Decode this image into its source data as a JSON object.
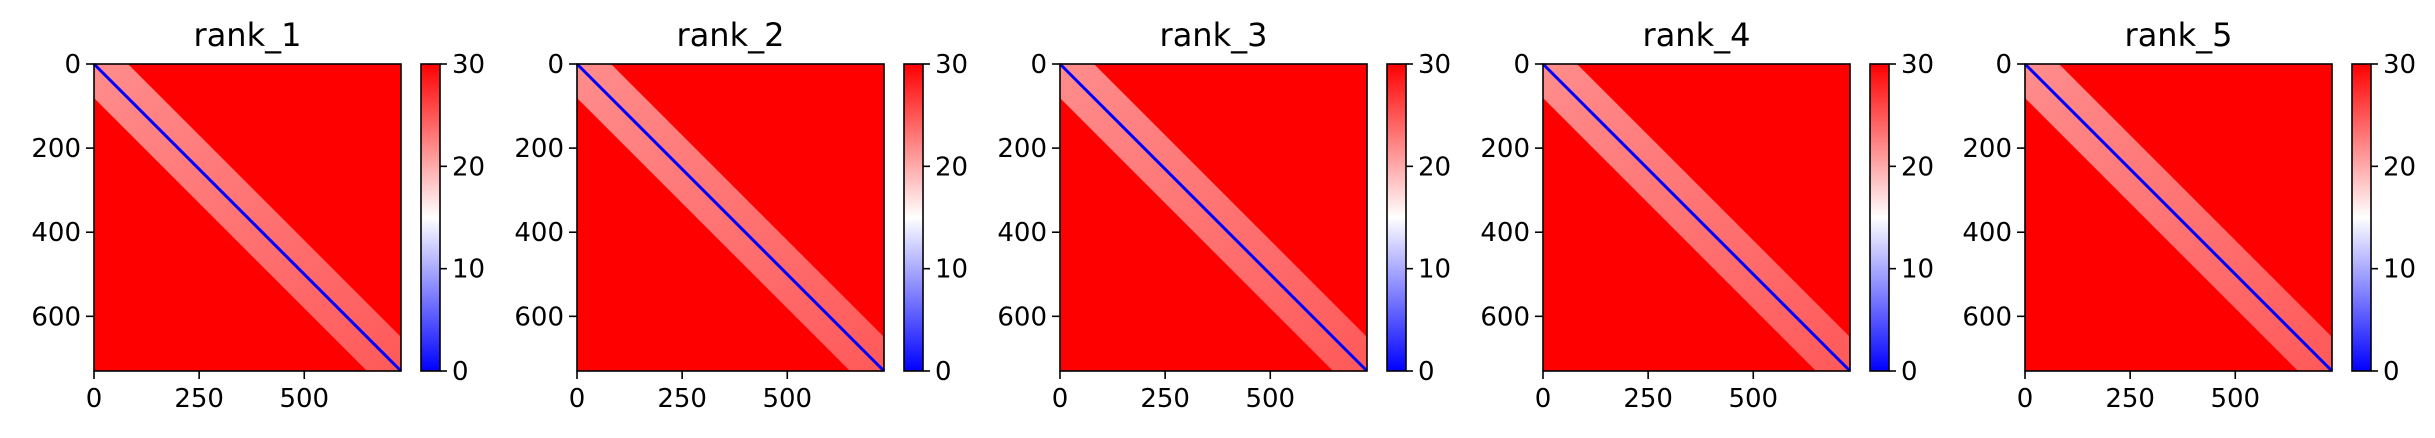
{
  "chart_data": [
    {
      "type": "heatmap",
      "title": "rank_1",
      "x_ticks": [
        0,
        250,
        500
      ],
      "y_ticks": [
        0,
        200,
        400,
        600
      ],
      "xlim": [
        0,
        730
      ],
      "ylim": [
        730,
        0
      ],
      "colorbar": {
        "ticks": [
          0,
          10,
          20,
          30
        ],
        "range": [
          0,
          30
        ],
        "colormap": "bwr",
        "low_color": "#0000ff",
        "mid_color": "#ffffff",
        "high_color": "#ff0000"
      }
    },
    {
      "type": "heatmap",
      "title": "rank_2",
      "x_ticks": [
        0,
        250,
        500
      ],
      "y_ticks": [
        0,
        200,
        400,
        600
      ],
      "xlim": [
        0,
        730
      ],
      "ylim": [
        730,
        0
      ],
      "colorbar": {
        "ticks": [
          0,
          10,
          20,
          30
        ],
        "range": [
          0,
          30
        ],
        "colormap": "bwr",
        "low_color": "#0000ff",
        "mid_color": "#ffffff",
        "high_color": "#ff0000"
      }
    },
    {
      "type": "heatmap",
      "title": "rank_3",
      "x_ticks": [
        0,
        250,
        500
      ],
      "y_ticks": [
        0,
        200,
        400,
        600
      ],
      "xlim": [
        0,
        730
      ],
      "ylim": [
        730,
        0
      ],
      "colorbar": {
        "ticks": [
          0,
          10,
          20,
          30
        ],
        "range": [
          0,
          30
        ],
        "colormap": "bwr",
        "low_color": "#0000ff",
        "mid_color": "#ffffff",
        "high_color": "#ff0000"
      }
    },
    {
      "type": "heatmap",
      "title": "rank_4",
      "x_ticks": [
        0,
        250,
        500
      ],
      "y_ticks": [
        0,
        200,
        400,
        600
      ],
      "xlim": [
        0,
        730
      ],
      "ylim": [
        730,
        0
      ],
      "colorbar": {
        "ticks": [
          0,
          10,
          20,
          30
        ],
        "range": [
          0,
          30
        ],
        "colormap": "bwr",
        "low_color": "#0000ff",
        "mid_color": "#ffffff",
        "high_color": "#ff0000"
      }
    },
    {
      "type": "heatmap",
      "title": "rank_5",
      "x_ticks": [
        0,
        250,
        500
      ],
      "y_ticks": [
        0,
        200,
        400,
        600
      ],
      "xlim": [
        0,
        730
      ],
      "ylim": [
        730,
        0
      ],
      "colorbar": {
        "ticks": [
          0,
          10,
          20,
          30
        ],
        "range": [
          0,
          30
        ],
        "colormap": "bwr",
        "low_color": "#0000ff",
        "mid_color": "#ffffff",
        "high_color": "#ff0000"
      }
    }
  ]
}
